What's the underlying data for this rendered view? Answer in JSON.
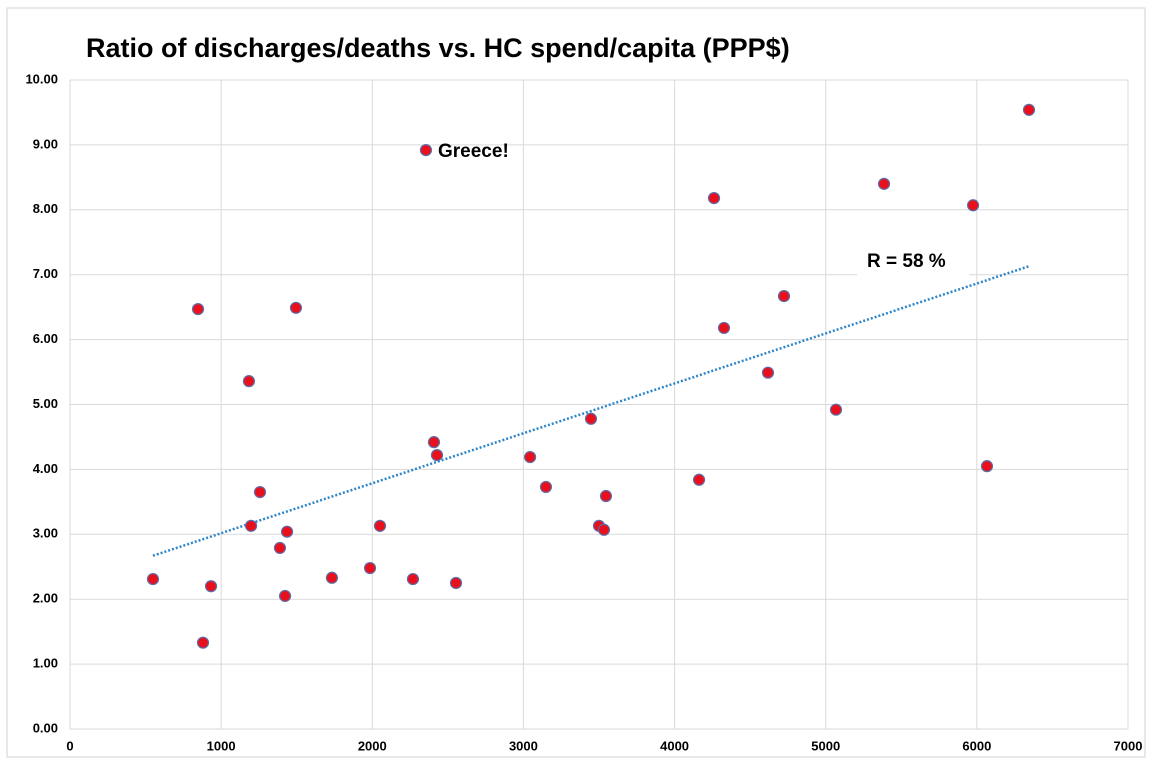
{
  "chart_data": {
    "type": "scatter",
    "title": "Ratio of discharges/deaths vs.  HC spend/capita (PPP$)",
    "series": [
      {
        "color": "#e8101c",
        "edge_color": "#5b6ea8",
        "x": [
          549,
          847,
          880,
          933,
          1184,
          1198,
          1257,
          1389,
          1423,
          1436,
          1495,
          1733,
          1985,
          2051,
          2269,
          2355,
          2408,
          2428,
          2554,
          3044,
          3149,
          3447,
          3500,
          3533,
          3546,
          4162,
          4261,
          4327,
          4618,
          4724,
          5068,
          5386,
          5975,
          6067,
          6345
        ],
        "values": [
          2.31,
          6.47,
          1.33,
          2.2,
          5.36,
          3.13,
          3.65,
          2.79,
          2.05,
          3.04,
          6.49,
          2.33,
          2.48,
          3.13,
          2.31,
          8.92,
          4.42,
          4.22,
          2.25,
          4.19,
          3.73,
          4.78,
          3.13,
          3.07,
          3.59,
          3.84,
          8.18,
          6.18,
          5.49,
          6.67,
          4.92,
          8.4,
          8.07,
          4.05,
          9.54
        ]
      }
    ],
    "trendline": {
      "x": [
        549,
        6345
      ],
      "values": [
        2.67,
        7.13
      ],
      "color": "#2e86c8"
    },
    "annotations": [
      "Greece!",
      "R = 58 %"
    ],
    "xlim": [
      0,
      7000
    ],
    "xticks": [
      0,
      1000,
      2000,
      3000,
      4000,
      5000,
      6000,
      7000
    ],
    "ylim": [
      0,
      10
    ],
    "yticks": [
      {
        "value": 0,
        "label": "0.00"
      },
      {
        "value": 1,
        "label": "1.00"
      },
      {
        "value": 2,
        "label": "2.00"
      },
      {
        "value": 3,
        "label": "3.00"
      },
      {
        "value": 4,
        "label": "4.00"
      },
      {
        "value": 5,
        "label": "5.00"
      },
      {
        "value": 6,
        "label": "6.00"
      },
      {
        "value": 7,
        "label": "7.00"
      },
      {
        "value": 8,
        "label": "8.00"
      },
      {
        "value": 9,
        "label": "9.00"
      },
      {
        "value": 10,
        "label": "10.00"
      }
    ],
    "grid": true
  }
}
